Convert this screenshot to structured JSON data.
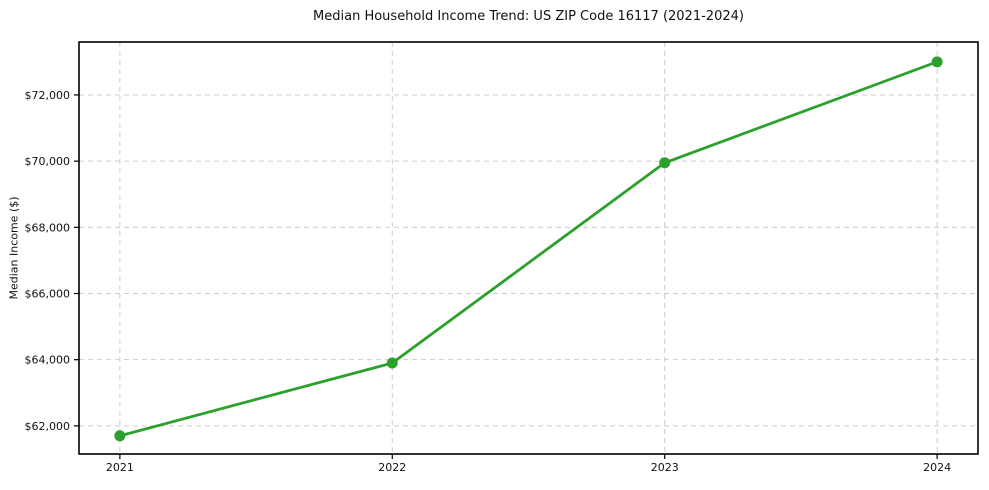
{
  "chart_data": {
    "type": "line",
    "title": "Median Household Income Trend: US ZIP Code 16117 (2021-2024)",
    "ylabel": "Median Income ($)",
    "xlabel": "",
    "series_name": "Median Household Income",
    "x": [
      2021,
      2022,
      2023,
      2024
    ],
    "values": [
      61700,
      63900,
      69950,
      73000
    ],
    "xtick_labels": [
      "2021",
      "2022",
      "2023",
      "2024"
    ],
    "ytick_values": [
      62000,
      64000,
      66000,
      68000,
      70000,
      72000
    ],
    "ytick_labels": [
      "$62,000",
      "$64,000",
      "$66,000",
      "$68,000",
      "$70,000",
      "$72,000"
    ],
    "xlim": [
      2020.85,
      2024.15
    ],
    "ylim": [
      61150,
      73600
    ],
    "grid": "both",
    "grid_style": "dashed",
    "legend_position": "none",
    "line_color": "#2ca02c",
    "marker_color": "#2ca02c",
    "grid_color": "#cccccc",
    "axis_color": "#000000",
    "tick_label_color": "#111111",
    "background_color": "#ffffff"
  }
}
